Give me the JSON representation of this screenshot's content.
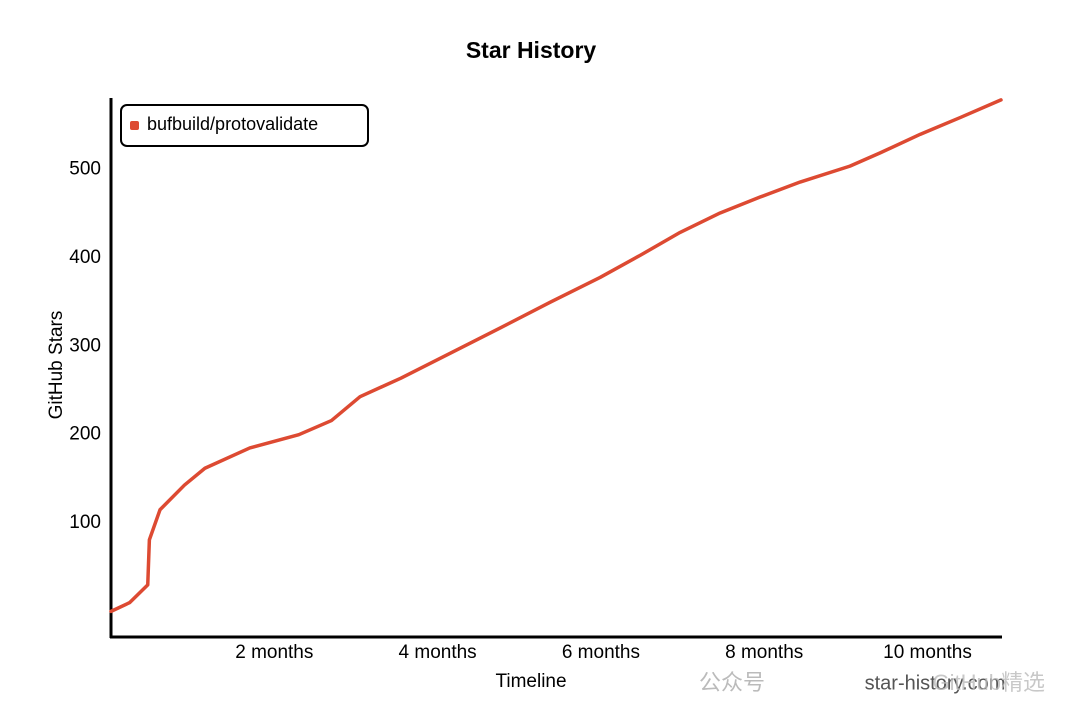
{
  "chart_data": {
    "type": "line",
    "title": "Star History",
    "x_label": "Timeline",
    "y_label": "GitHub Stars",
    "x": [
      0,
      0.23,
      0.45,
      0.47,
      0.6,
      0.9,
      1.15,
      1.7,
      2.3,
      2.7,
      3.05,
      3.55,
      4.15,
      4.77,
      5.38,
      5.99,
      6.48,
      6.97,
      7.46,
      7.95,
      8.44,
      9.05,
      9.42,
      9.91,
      10.4,
      10.9
    ],
    "series": [
      {
        "name": "bufbuild/protovalidate",
        "color": "#dd4a32",
        "values": [
          0,
          10,
          30,
          81,
          115,
          143,
          162,
          185,
          200,
          216,
          243,
          264,
          292,
          321,
          350,
          378,
          403,
          429,
          451,
          469,
          486,
          504,
          519,
          540,
          559,
          579
        ]
      }
    ],
    "xlim": [
      0,
      10.9
    ],
    "ylim": [
      -29,
      580
    ],
    "xticks": [
      {
        "value": 2,
        "label": "2 months"
      },
      {
        "value": 4,
        "label": "4 months"
      },
      {
        "value": 6,
        "label": "6 months"
      },
      {
        "value": 8,
        "label": "8 months"
      },
      {
        "value": 10,
        "label": "10 months"
      }
    ],
    "yticks": [
      100,
      200,
      300,
      400,
      500
    ],
    "legend": "top-left",
    "watermark": [
      "公众号",
      "star-history.com",
      "GitHub精选"
    ]
  }
}
